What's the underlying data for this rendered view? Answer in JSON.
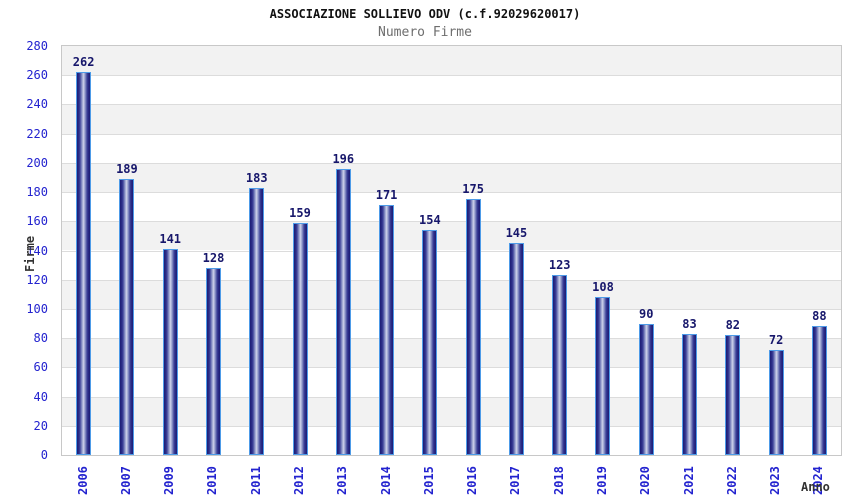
{
  "header": {
    "title": "ASSOCIAZIONE SOLLIEVO ODV (c.f.92029620017)",
    "subtitle": "Numero Firme"
  },
  "chart_data": {
    "type": "bar",
    "title": "ASSOCIAZIONE SOLLIEVO ODV (c.f.92029620017)",
    "subtitle": "Numero Firme",
    "xlabel": "Anno",
    "ylabel": "Firme",
    "categories": [
      "2006",
      "2007",
      "2009",
      "2010",
      "2011",
      "2012",
      "2013",
      "2014",
      "2015",
      "2016",
      "2017",
      "2018",
      "2019",
      "2020",
      "2021",
      "2022",
      "2023",
      "2024"
    ],
    "values": [
      262,
      189,
      141,
      128,
      183,
      159,
      196,
      171,
      154,
      175,
      145,
      123,
      108,
      90,
      83,
      82,
      72,
      88
    ],
    "ylim": [
      0,
      280
    ],
    "ytick_step": 20,
    "grid": true,
    "legend": null,
    "colors": {
      "bar_border": "#4d9be8",
      "bar_edge_dark": "#1e1e78",
      "bar_center_light": "#d0d4ea",
      "tick_label_blue": "#2323cf",
      "value_label_navy": "#17176b",
      "band_gray": "#f2f2f2",
      "band_white": "#ffffff",
      "grid_line": "#dcdcdc",
      "plot_border": "#c8c8c8",
      "axis_title": "#333333",
      "title_color": "#111111",
      "subtitle_color": "#6e6e6e"
    }
  }
}
